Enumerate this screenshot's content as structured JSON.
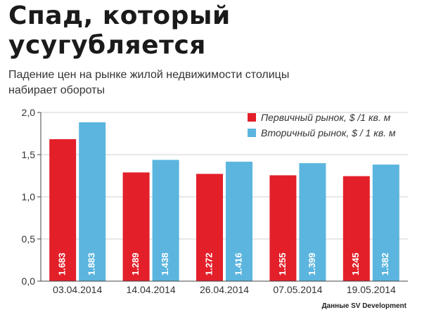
{
  "title_line1": "Спад, который",
  "title_line2": "усугубляется",
  "subtitle_line1": "Падение цен на рынке жилой недвижимости столицы",
  "subtitle_line2": "набирает обороты",
  "source": "Данные SV Development",
  "colors": {
    "primary": "#e3202a",
    "secondary": "#5bb5de",
    "grid": "#d0d0d0"
  },
  "chart_data": {
    "type": "bar",
    "categories": [
      "03.04.2014",
      "14.04.2014",
      "26.04.2014",
      "07.05.2014",
      "19.05.2014"
    ],
    "series": [
      {
        "name": "Первичный рынок, $ /1 кв. м",
        "values": [
          1.683,
          1.289,
          1.272,
          1.255,
          1.245
        ],
        "labels": [
          "1.683",
          "1.289",
          "1.272",
          "1.255",
          "1.245"
        ]
      },
      {
        "name": "Вторичный рынок, $ / 1 кв. м",
        "values": [
          1.883,
          1.438,
          1.416,
          1.399,
          1.382
        ],
        "labels": [
          "1.883",
          "1.438",
          "1.416",
          "1.399",
          "1.382"
        ]
      }
    ],
    "yticks": [
      "0,0",
      "0,5",
      "1,0",
      "1,5",
      "2,0"
    ],
    "ylim": [
      0,
      2.0
    ],
    "grid": true,
    "legend_position": "top-right"
  }
}
